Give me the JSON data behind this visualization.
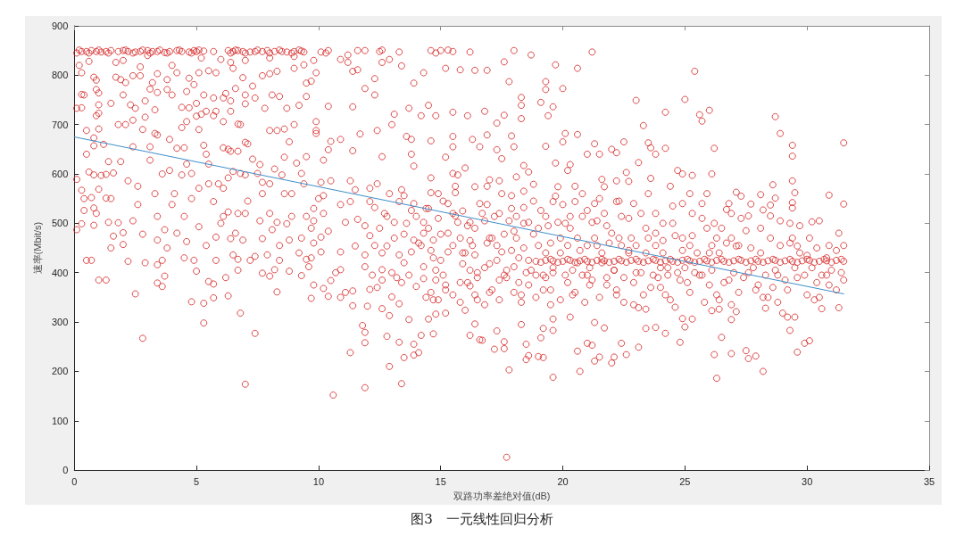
{
  "chart_data": {
    "type": "scatter",
    "xlabel": "双路功率差绝对值(dB)",
    "ylabel": "速率(Mbit/s)",
    "annotations": [
      "图3　一元线性回归分析"
    ],
    "xlim": [
      0,
      35
    ],
    "xticks": [
      0,
      5,
      10,
      15,
      20,
      25,
      30,
      35
    ],
    "ylim": [
      0,
      900
    ],
    "yticks": [
      0,
      100,
      200,
      300,
      400,
      500,
      600,
      700,
      800,
      900
    ],
    "series": [
      {
        "color": "#d42020",
        "marker": "circle",
        "x": [
          0.1,
          0.3,
          0.5,
          0.7,
          0.9,
          1.1,
          1.3,
          1.5,
          1.8,
          2.0,
          2.2,
          2.5,
          2.7,
          3.0,
          3.2,
          3.4,
          3.7,
          3.9,
          4.2,
          4.4,
          4.7,
          4.9,
          5.0,
          5.3,
          5.7,
          6.3,
          6.5,
          6.7,
          6.9,
          7.2,
          7.4,
          7.7,
          7.9,
          8.2,
          8.5,
          8.7,
          9.0,
          9.3,
          9.4,
          10.1,
          10.4,
          11.6,
          11.9,
          12.5,
          13.3,
          14.6,
          15.0,
          15.5,
          0.2,
          0.3,
          0.3,
          0.4,
          0.1,
          0.3,
          0.5,
          0.8,
          0.8,
          0.6,
          0.8,
          0.9,
          0.9,
          0.9,
          1.0,
          1.0,
          1.0,
          1.5,
          1.7,
          1.7,
          1.9,
          2.1,
          2.4,
          2.7,
          2.7,
          3.2,
          3.4,
          3.8,
          4.2,
          4.7,
          4.9,
          5.1,
          5.5,
          5.8,
          6.4,
          6.5,
          6.9,
          7.3,
          7.7,
          8.0,
          8.3,
          9.0,
          9.4,
          9.5,
          9.9,
          2.0,
          2.5,
          2.9,
          3.1,
          3.4,
          3.8,
          4.0,
          4.6,
          4.7,
          5.0,
          5.3,
          5.4,
          5.7,
          5.8,
          6.1,
          6.2,
          6.4,
          6.6,
          7.0,
          7.0,
          7.4,
          7.8,
          8.1,
          8.4,
          8.7,
          9.2,
          9.5,
          2.1,
          2.4,
          2.9,
          3.3,
          3.4,
          3.9,
          4.4,
          4.6,
          5.0,
          5.2,
          5.7,
          6.1,
          6.4,
          6.7,
          7.0,
          8.0,
          8.3,
          8.6,
          9.9,
          9.9,
          2.4,
          3.1,
          4.2,
          4.5,
          5.3,
          5.4,
          6.1,
          6.4,
          6.7,
          7.1,
          7.6,
          8.6,
          9.1,
          9.5,
          1.4,
          1.9,
          3.1,
          0.1,
          0.3,
          0.6,
          0.8,
          0.4,
          0.7,
          0.4,
          0.8,
          0.1,
          0.3,
          0.8,
          0.5,
          0.7,
          1.0,
          1.3,
          1.4,
          1.6,
          2.0,
          2.0,
          1.1,
          1.3,
          1.6,
          2.2,
          2.6,
          3.9,
          4.4,
          4.8,
          5.1,
          5.5,
          6.1,
          6.3,
          6.8,
          7.0,
          7.5,
          7.7,
          8.0,
          8.5,
          9.3,
          1.5,
          2.6,
          3.4,
          4.0,
          4.5,
          4.8,
          5.7,
          6.1,
          6.3,
          6.7,
          7.0,
          8.0,
          8.3,
          8.7,
          8.9,
          9.5,
          9.8,
          1.8,
          2.8,
          3.4,
          3.7,
          4.6,
          5.1,
          5.8,
          6.4,
          6.9,
          7.7,
          8.1,
          8.8,
          9.7,
          9.8,
          5.8,
          6.7,
          6.5,
          7.4,
          7.9,
          8.2,
          9.5,
          10.1,
          3.6,
          2.2,
          4.5,
          7.2,
          8.4,
          9.2,
          1.0,
          1.3,
          2.5,
          2.8,
          3.4,
          3.4,
          3.6,
          3.7,
          4.8,
          5.0,
          5.3,
          5.3,
          5.5,
          5.7,
          5.7,
          6.3,
          6.2,
          6.7,
          6.8,
          7.0,
          7.4,
          7.7,
          8.0,
          8.3,
          8.8,
          9.3,
          9.6,
          9.8,
          9.7,
          10.2,
          10.4,
          10.6,
          10.5,
          10.7,
          10.9,
          11.1,
          11.4,
          11.3,
          11.4,
          11.8,
          11.9,
          11.9,
          11.9,
          12.0,
          12.1,
          12.4,
          12.6,
          12.9,
          12.8,
          12.9,
          13.3,
          13.5,
          13.4,
          13.7,
          13.9,
          13.9,
          14.1,
          14.2,
          14.5,
          14.7,
          14.8,
          13.3,
          13.0,
          15.2,
          16.2,
          16.4,
          16.6,
          16.0,
          16.2,
          17.8,
          17.7,
          18.5,
          18.6,
          19.0,
          19.2,
          19.6,
          20.6,
          20.7,
          21.0,
          21.2,
          21.3,
          21.5,
          22.0,
          22.1,
          22.4,
          22.6,
          23.1,
          23.4,
          23.8,
          24.2,
          24.8,
          25.0,
          26.2,
          26.3,
          26.5,
          26.9,
          27.5,
          27.6,
          27.9,
          28.2,
          29.3,
          29.6,
          29.9,
          30.1,
          30.6,
          31.3,
          30.5,
          29.0,
          29.2,
          29.5,
          28.3,
          26.9,
          27.1,
          26.1,
          26.4,
          25.3,
          24.9,
          23.4,
          23.1,
          21.7,
          21.3,
          20.3,
          19.2,
          19.1,
          19.6,
          19.6,
          18.3,
          17.6,
          17.6,
          17.2,
          16.7,
          17.3,
          18.5,
          18.7,
          19.7,
          20.6,
          16.2,
          18.0,
          21.2,
          9.7,
          10.9,
          11.2,
          11.2,
          11.6,
          11.4,
          12.6,
          12.9,
          13.4,
          15.8,
          16.4,
          16.9,
          15.2,
          11.9,
          12.3,
          12.3,
          13.9,
          14.3,
          17.6,
          17.8,
          19.3,
          19.3,
          20.0,
          18.3,
          18.3,
          19.1,
          19.6,
          19.4,
          16.8,
          17.3,
          17.6,
          16.1,
          15.5,
          14.8,
          14.5,
          14.2,
          13.7,
          13.1,
          11.4,
          10.4,
          18.0,
          18.3,
          19.3,
          20.0,
          20.6,
          20.1,
          21.3,
          21.0,
          21.5,
          22.2,
          22.5,
          17.9,
          17.3,
          16.9,
          16.3,
          15.5,
          15.5,
          14.6,
          13.8,
          13.6,
          13.0,
          12.4,
          11.7,
          10.5,
          10.9,
          9.9,
          10.4,
          10.2,
          11.4,
          12.6,
          13.8,
          15.2,
          16.6,
          17.5,
          18.4,
          18.6,
          19.7,
          20.3,
          10.1,
          10.5,
          11.3,
          12.1,
          13.4,
          14.6,
          15.5,
          16.0,
          17.0,
          18.1,
          18.8,
          20.2,
          21.6,
          22.2,
          10.2,
          10.0,
          9.8,
          10.2,
          10.4,
          10.1,
          10.9,
          11.3,
          11.5,
          11.1,
          11.6,
          11.9,
          12.1,
          12.3,
          12.5,
          12.8,
          13.1,
          13.3,
          13.5,
          13.8,
          14.0,
          13.5,
          13.9,
          14.3,
          14.5,
          14.7,
          15.0,
          13.9,
          14.6,
          15.6,
          15.7,
          15.5,
          15.7,
          16.2,
          16.4,
          16.7,
          16.9,
          17.2,
          17.4,
          17.6,
          18.0,
          18.1,
          18.4,
          18.6,
          18.8,
          19.1,
          19.3,
          19.6,
          19.8,
          20.0,
          20.3,
          20.5,
          20.8,
          21.0,
          21.2,
          21.5,
          21.7,
          22.2,
          22.4,
          16.4,
          17.4,
          17.9,
          18.4,
          19.8,
          20.5,
          21.7,
          10.9,
          11.5,
          11.9,
          12.8,
          13.3,
          13.8,
          14.3,
          14.7,
          15.3,
          15.9,
          16.4,
          17.0,
          17.5,
          18.0,
          18.4,
          10.9,
          11.9,
          12.6,
          15.8,
          16.9,
          19.5,
          20.6,
          21.4,
          22.0,
          18.9,
          19.3,
          19.6,
          20.0,
          20.3,
          20.7,
          21.0,
          21.4,
          21.7,
          22.1,
          22.4,
          22.8,
          23.1,
          23.5,
          23.8,
          24.2,
          24.5,
          24.9,
          25.2,
          25.6,
          25.9,
          26.3,
          26.6,
          27.0,
          27.3,
          27.7,
          28.0,
          28.4,
          28.7,
          29.1,
          29.4,
          29.8,
          30.1,
          30.5,
          30.8,
          31.2,
          31.5,
          12.2,
          12.6,
          13.0,
          13.4,
          13.7,
          14.0,
          14.3,
          14.6,
          14.9,
          15.2,
          15.5,
          15.8,
          16.1,
          16.4,
          16.8,
          17.1,
          17.4,
          17.7,
          18.0,
          18.3,
          18.6,
          18.9,
          19.2,
          19.5,
          19.9,
          20.2,
          20.5,
          20.8,
          21.1,
          21.5,
          21.8,
          22.2,
          22.5,
          22.9,
          23.3,
          23.7,
          24.0,
          24.4,
          24.8,
          25.2,
          25.6,
          26.0,
          26.4,
          26.8,
          27.2,
          27.6,
          28.0,
          28.4,
          28.8,
          29.2,
          29.6,
          30.0,
          30.4,
          30.8,
          31.2,
          31.5,
          14.2,
          14.8,
          15.3,
          15.9,
          16.5,
          17.0,
          17.6,
          18.2,
          18.7,
          19.3,
          19.9,
          20.4,
          21.0,
          21.6,
          22.1,
          22.7,
          23.2,
          23.8,
          24.3,
          24.9,
          25.4,
          26.0,
          14.5,
          15.1,
          15.6,
          16.2,
          16.8,
          17.3,
          17.9,
          18.5,
          19.0,
          19.6,
          20.1,
          20.7,
          21.3,
          21.8,
          22.4,
          22.9,
          23.5,
          24.1,
          24.6,
          25.2,
          25.7,
          26.3,
          26.9,
          27.5,
          25.4,
          23.0,
          25.0,
          24.2,
          25.6,
          25.7,
          26.0,
          23.3,
          28.7,
          28.9,
          29.4,
          29.4,
          31.5,
          22.0,
          26.2,
          24.2,
          23.5,
          23.6,
          23.8,
          23.1,
          24.7,
          24.9,
          25.3,
          26.1,
          22.6,
          22.7,
          23.6,
          24.4,
          25.9,
          27.1,
          28.6,
          29.4,
          29.5,
          28.1,
          30.9,
          31.5,
          27.7,
          28.2,
          28.5,
          28.7,
          29.4,
          29.4,
          26.7,
          30.2,
          27.1,
          29.6,
          22.3,
          22.7,
          23.0,
          23.4,
          23.8,
          24.1,
          24.5,
          24.9,
          25.3,
          25.7,
          26.1,
          26.5,
          26.9,
          27.3,
          27.7,
          28.1,
          28.5,
          28.9,
          29.3,
          29.7,
          30.1,
          30.5,
          30.9,
          31.3,
          19.1,
          19.5,
          19.8,
          20.2,
          20.5,
          20.9,
          21.2,
          21.6,
          21.9,
          22.3,
          22.6,
          23.0,
          23.3,
          23.7,
          24.0,
          24.4,
          24.7,
          25.1,
          25.4,
          25.8,
          26.1,
          26.5,
          26.8,
          27.2,
          27.5,
          27.9,
          28.2,
          28.6,
          28.9,
          29.3,
          29.6,
          30.0,
          30.3,
          30.7,
          31.0,
          31.4,
          12.3,
          12.7,
          13.1,
          13.2,
          13.6,
          13.9,
          12.4,
          12.9,
          13.5,
          14.1,
          14.4,
          14.8,
          14.9,
          12.1,
          12.6,
          14.3,
          14.6,
          14.9,
          15.1,
          15.3,
          15.5,
          15.8,
          15.9,
          15.2,
          16.0,
          14.4,
          15.6,
          15.0,
          14.7,
          16.1,
          16.3,
          16.5,
          16.6,
          16.8,
          17.0,
          17.1,
          17.3,
          17.5,
          17.7,
          17.8,
          16.2,
          16.9,
          17.4,
          17.9,
          16.5,
          18.1,
          18.2,
          18.4,
          18.6,
          18.8,
          19.0,
          19.2,
          19.4,
          19.6,
          19.7,
          18.3,
          18.9,
          19.3,
          19.9,
          19.5,
          20.1,
          20.3,
          20.4,
          20.6,
          20.8,
          21.0,
          21.2,
          21.4,
          21.6,
          21.8,
          20.2,
          20.9,
          21.3,
          21.9,
          21.1,
          22.1,
          22.3,
          22.5,
          22.8,
          23.0,
          23.2,
          23.4,
          23.6,
          23.8,
          24.0,
          22.2,
          22.9,
          23.5,
          23.9,
          22.7,
          24.1,
          24.3,
          24.5,
          24.7,
          24.9,
          25.1,
          25.3,
          25.5,
          25.7,
          25.9,
          24.2,
          24.6,
          25.2,
          25.8,
          25.0,
          26.1,
          26.2,
          26.4,
          26.6,
          26.8,
          27.0,
          27.2,
          27.4,
          27.6,
          27.8,
          26.3,
          26.9,
          27.3,
          27.9,
          26.7,
          28.1,
          28.3,
          28.5,
          28.7,
          28.9,
          29.1,
          29.3,
          29.5,
          29.7,
          29.9,
          28.2,
          28.8,
          29.4,
          30.0,
          28.6,
          30.2,
          30.4,
          30.6,
          30.8,
          31.0,
          31.2,
          31.4,
          30.3,
          30.9,
          31.5,
          0.5,
          1.2,
          1.8,
          2.3,
          2.8,
          3.3,
          3.6,
          4.1,
          4.6,
          5.1,
          5.5,
          5.9,
          6.3,
          6.8,
          7.3,
          7.7,
          8.2,
          8.6,
          9.0,
          9.4,
          0.9,
          1.5,
          2.4,
          2.9,
          3.3,
          3.8,
          4.2,
          4.9,
          5.4,
          6.0,
          6.6,
          7.1,
          7.6,
          8.4,
          8.9,
          9.3,
          9.7,
          1.0,
          2.0,
          3.0,
          4.0,
          5.2,
          6.0,
          7.0,
          8.0,
          9.0,
          9.8,
          4.4,
          6.5,
          8.8,
          0.2,
          0.6,
          1.0,
          1.4,
          2.1,
          2.4,
          2.8,
          3.1,
          3.5,
          3.8,
          4.3,
          4.8,
          5.1,
          6.4,
          6.6,
          7.0,
          7.5,
          8.0,
          8.4,
          8.9,
          9.2,
          10.3,
          12.6,
          14.8,
          15.3
        ],
        "values": [
          845,
          848,
          848,
          850,
          848,
          847,
          848,
          850,
          848,
          850,
          848,
          847,
          848,
          850,
          848,
          848,
          846,
          848,
          850,
          848,
          847,
          850,
          848,
          849,
          848,
          850,
          848,
          850,
          848,
          847,
          848,
          848,
          850,
          848,
          848,
          847,
          848,
          849,
          847,
          847,
          850,
          850,
          850,
          848,
          847,
          850,
          850,
          848,
          820,
          805,
          761,
          760,
          733,
          734,
          688,
          673,
          657,
          828,
          796,
          790,
          771,
          718,
          723,
          691,
          764,
          743,
          826,
          796,
          791,
          785,
          799,
          817,
          799,
          785,
          803,
          791,
          805,
          794,
          781,
          805,
          809,
          805,
          826,
          814,
          795,
          778,
          799,
          803,
          808,
          814,
          821,
          784,
          805,
          760,
          733,
          748,
          772,
          765,
          771,
          760,
          767,
          734,
          743,
          760,
          727,
          754,
          727,
          754,
          763,
          748,
          773,
          760,
          742,
          754,
          733,
          760,
          757,
          733,
          739,
          757,
          700,
          709,
          715,
          682,
          679,
          670,
          694,
          706,
          717,
          721,
          718,
          706,
          727,
          701,
          664,
          688,
          688,
          691,
          682,
          706,
          655,
          655,
          652,
          653,
          658,
          640,
          653,
          646,
          646,
          661,
          619,
          634,
          622,
          635,
          625,
          625,
          628,
          589,
          567,
          604,
          598,
          550,
          552,
          526,
          531,
          487,
          499,
          496,
          425,
          425,
          569,
          551,
          502,
          474,
          481,
          457,
          597,
          599,
          602,
          586,
          575,
          607,
          598,
          601,
          571,
          580,
          571,
          592,
          601,
          598,
          601,
          583,
          580,
          598,
          601,
          550,
          538,
          514,
          538,
          514,
          550,
          544,
          514,
          523,
          520,
          520,
          520,
          502,
          499,
          514,
          514,
          505,
          501,
          478,
          466,
          487,
          463,
          493,
          472,
          469,
          466,
          469,
          487,
          466,
          490,
          460,
          425,
          427,
          436,
          433,
          436,
          406,
          427,
          442,
          425,
          423,
          430,
          425,
          425,
          440,
          385,
          385,
          357,
          267,
          416,
          379,
          372,
          393,
          341,
          403,
          338,
          298,
          382,
          377,
          349,
          353,
          390,
          405,
          318,
          174,
          277,
          399,
          393,
          361,
          403,
          394,
          412,
          375,
          348,
          368,
          352,
          152,
          384,
          400,
          350,
          360,
          363,
          238,
          333,
          293,
          279,
          258,
          167,
          332,
          366,
          370,
          327,
          313,
          271,
          210,
          259,
          228,
          175,
          305,
          255,
          233,
          238,
          273,
          306,
          276,
          316,
          337,
          351,
          318,
          273,
          296,
          264,
          324,
          373,
          203,
          26,
          224,
          232,
          230,
          228,
          188,
          241,
          200,
          257,
          253,
          221,
          229,
          217,
          229,
          257,
          234,
          249,
          287,
          289,
          277,
          259,
          290,
          234,
          186,
          269,
          236,
          242,
          226,
          231,
          200,
          283,
          239,
          257,
          262,
          327,
          329,
          350,
          318,
          310,
          310,
          328,
          305,
          321,
          323,
          326,
          306,
          307,
          326,
          329,
          288,
          299,
          310,
          287,
          268,
          283,
          306,
          295,
          260,
          246,
          245,
          263,
          282,
          255,
          841,
          821,
          814,
          847,
          850,
          847,
          788,
          832,
          841,
          826,
          811,
          808,
          826,
          832,
          819,
          811,
          810,
          810,
          814,
          773,
          793,
          760,
          784,
          805,
          827,
          787,
          787,
          771,
          773,
          755,
          739,
          745,
          736,
          718,
          727,
          703,
          719,
          718,
          725,
          718,
          739,
          718,
          733,
          721,
          736,
          737,
          655,
          712,
          656,
          665,
          680,
          682,
          661,
          640,
          640,
          643,
          665,
          677,
          649,
          679,
          670,
          676,
          655,
          667,
          670,
          676,
          700,
          688,
          681,
          666,
          670,
          688,
          649,
          628,
          647,
          635,
          640,
          634,
          655,
          631,
          617,
          604,
          622,
          619,
          583,
          586,
          586,
          571,
          568,
          562,
          601,
          612,
          588,
          594,
          579,
          607,
          589,
          586,
          556,
          550,
          530,
          520,
          484,
          472,
          538,
          544,
          568,
          502,
          508,
          495,
          544,
          532,
          490,
          514,
          502,
          544,
          556,
          526,
          514,
          478,
          466,
          502,
          490,
          466,
          478,
          616,
          592,
          562,
          598,
          520,
          502,
          502,
          490,
          520,
          538,
          514,
          520,
          478,
          484,
          514,
          532,
          502,
          478,
          526,
          514,
          544,
          502,
          538,
          514,
          544,
          514,
          526,
          502,
          550,
          520,
          544,
          514,
          574,
          586,
          556,
          565,
          574,
          575,
          574,
          442,
          454,
          436,
          454,
          436,
          442,
          412,
          430,
          442,
          418,
          436,
          418,
          442,
          412,
          450,
          406,
          412,
          406,
          470,
          460,
          460,
          470,
          455,
          480,
          423,
          425,
          424,
          423,
          425,
          424,
          423,
          425,
          424,
          423,
          424,
          425,
          423,
          424,
          425,
          424,
          423,
          425,
          424,
          423,
          424,
          425,
          423,
          424,
          425,
          424,
          423,
          424,
          425,
          424,
          423,
          424,
          425,
          423,
          424,
          425,
          423,
          395,
          385,
          400,
          380,
          395,
          372,
          388,
          360,
          345,
          375,
          355,
          340,
          380,
          355,
          335,
          365,
          345,
          390,
          360,
          340,
          375,
          350,
          395,
          365,
          345,
          380,
          360,
          395,
          375,
          350,
          390,
          365,
          340,
          380,
          355,
          395,
          370,
          345,
          385,
          360,
          395,
          375,
          345,
          385,
          360,
          400,
          375,
          350,
          395,
          365,
          390,
          355,
          380,
          395,
          365,
          385,
          455,
          405,
          480,
          440,
          400,
          470,
          395,
          430,
          405,
          390,
          440,
          405,
          395,
          420,
          405,
          440,
          400,
          455,
          410,
          445,
          400,
          440,
          530,
          545,
          515,
          465,
          410,
          455,
          530,
          400,
          490,
          410,
          500,
          445,
          470,
          495,
          455,
          540,
          470,
          500,
          475,
          455,
          540,
          470,
          520,
          485,
          808,
          749,
          751,
          725,
          720,
          707,
          729,
          698,
          716,
          682,
          658,
          636,
          663,
          650,
          652,
          652,
          663,
          653,
          640,
          623,
          607,
          600,
          597,
          600,
          603,
          585,
          591,
          575,
          560,
          563,
          578,
          586,
          562,
          558,
          557,
          539,
          539,
          527,
          537,
          551,
          542,
          531,
          528,
          503,
          454,
          454,
          470,
          510,
          455,
          490,
          520,
          465,
          500,
          540,
          475,
          510,
          455,
          490,
          470,
          510,
          450,
          490,
          470,
          505,
          460,
          495,
          470,
          505,
          455,
          480,
          421,
          427,
          421,
          427,
          421,
          427,
          421,
          427,
          421,
          427,
          421,
          427,
          421,
          427,
          421,
          427,
          421,
          427,
          421,
          427,
          421,
          427,
          421,
          427,
          421,
          427,
          421,
          427,
          421,
          427,
          421,
          427,
          421,
          427,
          421,
          427,
          455,
          520,
          470,
          390,
          500,
          540,
          580,
          560,
          420,
          460,
          530,
          385,
          560,
          475,
          440,
          480,
          445,
          510,
          395,
          540,
          455,
          380,
          525,
          365,
          440,
          350,
          575,
          425,
          345,
          495,
          455,
          390,
          540,
          505,
          360,
          470,
          425,
          560,
          405,
          505,
          405,
          575,
          385,
          445,
          345,
          470,
          380,
          500,
          425,
          545,
          455,
          365,
          495,
          400,
          555,
          355,
          395,
          440,
          470,
          335,
          395,
          490,
          355,
          420,
          560,
          455,
          385,
          505,
          440,
          375,
          455,
          340,
          540,
          460,
          410,
          405,
          545,
          390,
          470,
          400,
          520,
          440,
          370,
          480,
          410,
          355,
          335,
          560,
          390,
          445,
          440,
          395,
          535,
          400,
          470,
          380,
          520,
          440,
          395,
          490,
          355,
          330,
          560,
          340,
          410,
          405,
          500,
          440,
          380,
          540,
          400,
          455,
          390,
          515,
          410,
          355,
          335,
          555,
          365,
          460,
          440,
          395,
          515,
          405,
          455,
          385,
          500,
          410,
          440,
          395,
          350,
          340,
          470,
          435,
          370,
          410,
          450,
          395,
          430,
          405,
          445,
          400,
          345,
          375,
          455,
          640,
          660,
          700,
          740,
          690,
          730,
          600,
          560,
          620,
          690,
          620,
          580,
          650,
          700,
          630,
          560,
          610,
          560,
          700,
          580,
          520,
          450,
          505,
          420,
          560,
          450,
          480,
          425,
          455,
          500,
          480,
          545,
          505,
          455,
          560,
          470,
          430,
          740,
          830,
          840,
          820,
          835,
          832,
          830,
          835,
          838,
          830,
          735,
          605,
          665,
          851,
          845,
          851,
          845,
          851,
          845,
          851,
          845,
          851,
          845,
          851,
          845,
          851,
          845,
          851,
          845,
          851,
          845,
          851,
          845,
          851,
          845,
          851,
          845,
          851
        ]
      },
      {
        "type": "line",
        "color": "#3e8ec8",
        "marker": "none",
        "line_style": "solid",
        "x": [
          0,
          31.5
        ],
        "values": [
          675,
          357
        ]
      }
    ]
  }
}
